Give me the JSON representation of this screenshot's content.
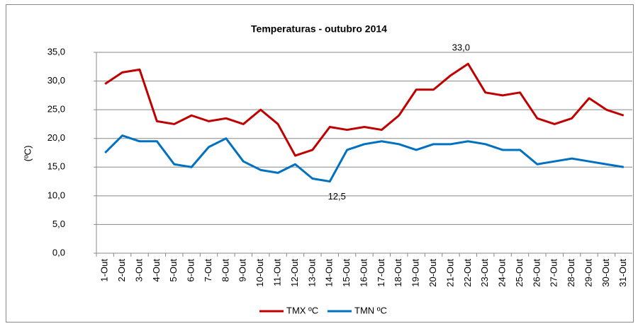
{
  "chart_data": {
    "type": "line",
    "title": "Temperaturas - outubro 2014",
    "y_label": "(ºC)",
    "categories": [
      "1-Out",
      "2-Out",
      "3-Out",
      "4-Out",
      "5-Out",
      "6-Out",
      "7-Out",
      "8-Out",
      "9-Out",
      "10-Out",
      "11-Out",
      "12-Out",
      "13-Out",
      "14-Out",
      "15-Out",
      "16-Out",
      "17-Out",
      "18-Out",
      "19-Out",
      "20-Out",
      "21-Out",
      "22-Out",
      "23-Out",
      "24-Out",
      "25-Out",
      "26-Out",
      "27-Out",
      "28-Out",
      "29-Out",
      "30-Out",
      "31-Out"
    ],
    "series": [
      {
        "name": "TMX ºC",
        "color": "#c00000",
        "values": [
          29.5,
          31.5,
          32,
          23,
          22.5,
          24,
          23,
          23.5,
          22.5,
          25,
          22.5,
          17,
          18,
          22,
          21.5,
          22,
          21.5,
          24,
          28.5,
          28.5,
          31,
          33,
          28,
          27.5,
          28,
          23.5,
          22.5,
          23.5,
          27,
          25,
          24
        ],
        "value_labels": [
          null,
          null,
          null,
          null,
          null,
          null,
          null,
          null,
          null,
          null,
          null,
          null,
          null,
          null,
          null,
          null,
          null,
          null,
          null,
          null,
          null,
          "33,0",
          null,
          null,
          null,
          null,
          null,
          null,
          null,
          null,
          null
        ]
      },
      {
        "name": "TMN ºC",
        "color": "#0070c0",
        "values": [
          17.5,
          20.5,
          19.5,
          19.5,
          15.5,
          15,
          18.5,
          20,
          16,
          14.5,
          14,
          15.5,
          13,
          12.5,
          18,
          19,
          19.5,
          19,
          18,
          19,
          19,
          19.5,
          19,
          18,
          18,
          15.5,
          16,
          16.5,
          16,
          15.5,
          15
        ],
        "value_labels": [
          null,
          null,
          null,
          null,
          null,
          null,
          null,
          null,
          null,
          null,
          null,
          null,
          null,
          "12,5",
          null,
          null,
          null,
          null,
          null,
          null,
          null,
          null,
          null,
          null,
          null,
          null,
          null,
          null,
          null,
          null,
          null
        ]
      }
    ],
    "ylim": [
      0,
      35
    ],
    "yticks": [
      {
        "value": 0,
        "label": "0,0"
      },
      {
        "value": 5,
        "label": "5,0"
      },
      {
        "value": 10,
        "label": "10,0"
      },
      {
        "value": 15,
        "label": "15,0"
      },
      {
        "value": 20,
        "label": "20,0"
      },
      {
        "value": 25,
        "label": "25,0"
      },
      {
        "value": 30,
        "label": "30,0"
      },
      {
        "value": 35,
        "label": "35,0"
      }
    ],
    "grid": true,
    "legend": "bottom"
  }
}
